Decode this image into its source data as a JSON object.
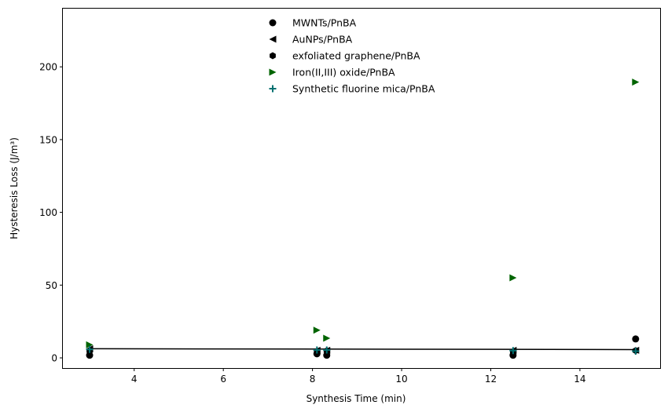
{
  "chart_data": {
    "type": "scatter",
    "title": "",
    "xlabel": "Synthesis Time (min)",
    "ylabel": "Hysteresis Loss (J/m³)",
    "xlim": [
      2.4,
      15.8
    ],
    "ylim": [
      -7,
      240
    ],
    "xticks": [
      4,
      6,
      8,
      10,
      12,
      14
    ],
    "yticks": [
      0,
      50,
      100,
      150,
      200
    ],
    "grid": false,
    "legend": {
      "placement": "top-center"
    },
    "series": [
      {
        "name": "MWNTs/PnBA",
        "marker": "circle",
        "color": "#000000",
        "points": [
          [
            3.0,
            1.8
          ],
          [
            8.1,
            2.8
          ],
          [
            8.32,
            1.8
          ],
          [
            12.5,
            1.8
          ],
          [
            15.25,
            13.0
          ]
        ]
      },
      {
        "name": "AuNPs/PnBA",
        "marker": "triangle-left",
        "color": "#000000",
        "points": [
          [
            3.0,
            6.2
          ],
          [
            8.1,
            5.2
          ],
          [
            8.32,
            5.2
          ],
          [
            12.5,
            5.2
          ],
          [
            15.25,
            5.2
          ]
        ]
      },
      {
        "name": "exfoliated graphene/PnBA",
        "marker": "hexagon",
        "color": "#000000",
        "points": [
          [
            3.0,
            4.8
          ],
          [
            8.1,
            4.0
          ],
          [
            8.32,
            4.8
          ],
          [
            12.5,
            4.0
          ],
          [
            15.25,
            5.0
          ]
        ]
      },
      {
        "name": "Iron(II,III) oxide/PnBA",
        "marker": "triangle-right",
        "color": "#006400",
        "points": [
          [
            3.0,
            9.0
          ],
          [
            8.1,
            19.0
          ],
          [
            8.32,
            13.5
          ],
          [
            12.5,
            55.0
          ],
          [
            15.25,
            189.5
          ]
        ]
      },
      {
        "name": "Synthetic fluorine mica/PnBA",
        "marker": "plus",
        "color": "#007070",
        "points": [
          [
            3.0,
            5.8
          ],
          [
            8.1,
            5.4
          ],
          [
            8.32,
            5.4
          ],
          [
            12.5,
            5.0
          ],
          [
            15.25,
            4.6
          ]
        ]
      }
    ],
    "trendline": {
      "color": "#000000",
      "points": [
        [
          3.0,
          6.3
        ],
        [
          15.25,
          5.7
        ]
      ]
    }
  }
}
